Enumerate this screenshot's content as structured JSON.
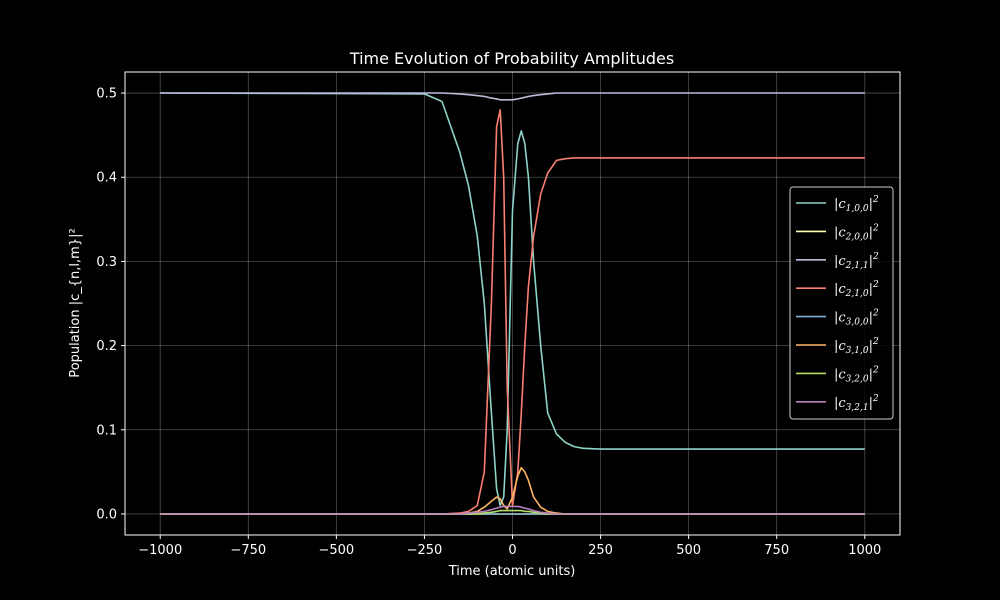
{
  "chart_data": {
    "type": "line",
    "title": "Time Evolution of Probability Amplitudes",
    "xlabel": "Time (atomic units)",
    "ylabel": "Population |c_{n,l,m}|²",
    "xlim": [
      -1100,
      1100
    ],
    "ylim": [
      -0.025,
      0.525
    ],
    "xticks": [
      -1000,
      -750,
      -500,
      -250,
      0,
      250,
      500,
      750,
      1000
    ],
    "xtick_labels": [
      "−1000",
      "−750",
      "−500",
      "−250",
      "0",
      "250",
      "500",
      "750",
      "1000"
    ],
    "yticks": [
      0.0,
      0.1,
      0.2,
      0.3,
      0.4,
      0.5
    ],
    "ytick_labels": [
      "0.0",
      "0.1",
      "0.2",
      "0.3",
      "0.4",
      "0.5"
    ],
    "grid": true,
    "legend_position": "center-right",
    "x": [
      -1000,
      -250,
      -200,
      -150,
      -125,
      -100,
      -80,
      -60,
      -45,
      -35,
      -25,
      -15,
      0,
      15,
      25,
      35,
      45,
      60,
      80,
      100,
      125,
      150,
      175,
      200,
      250,
      1000
    ],
    "series": [
      {
        "name": "|c_{1,0,0}|²",
        "sub": "1,0,0",
        "color": "#8dd3c7",
        "values": [
          0.5,
          0.499,
          0.49,
          0.43,
          0.39,
          0.33,
          0.25,
          0.12,
          0.03,
          0.01,
          0.02,
          0.1,
          0.36,
          0.44,
          0.455,
          0.44,
          0.4,
          0.3,
          0.2,
          0.12,
          0.095,
          0.085,
          0.08,
          0.078,
          0.077,
          0.077
        ]
      },
      {
        "name": "|c_{2,0,0}|²",
        "sub": "2,0,0",
        "color": "#ffffb3",
        "values": [
          0,
          0,
          0,
          0,
          0,
          0,
          0,
          0,
          0,
          0,
          0,
          0,
          0,
          0,
          0,
          0,
          0,
          0,
          0,
          0,
          0,
          0,
          0,
          0,
          0,
          0
        ]
      },
      {
        "name": "|c_{2,1,1}|²",
        "sub": "2,1,1",
        "color": "#bebada",
        "values": [
          0.5,
          0.5,
          0.5,
          0.499,
          0.498,
          0.497,
          0.496,
          0.494,
          0.493,
          0.492,
          0.492,
          0.492,
          0.492,
          0.493,
          0.494,
          0.495,
          0.496,
          0.497,
          0.498,
          0.499,
          0.5,
          0.5,
          0.5,
          0.5,
          0.5,
          0.5
        ]
      },
      {
        "name": "|c_{2,1,0}|²",
        "sub": "2,1,0",
        "color": "#fa8072",
        "values": [
          0,
          0,
          0,
          0.001,
          0.003,
          0.01,
          0.05,
          0.25,
          0.46,
          0.48,
          0.4,
          0.15,
          0.01,
          0.05,
          0.12,
          0.2,
          0.27,
          0.33,
          0.38,
          0.405,
          0.42,
          0.422,
          0.423,
          0.423,
          0.423,
          0.423
        ]
      },
      {
        "name": "|c_{3,0,0}|²",
        "sub": "3,0,0",
        "color": "#80b1d3",
        "values": [
          0,
          0,
          0,
          0,
          0,
          0,
          0,
          0,
          0,
          0,
          0,
          0,
          0,
          0,
          0,
          0,
          0,
          0,
          0,
          0,
          0,
          0,
          0,
          0,
          0,
          0
        ]
      },
      {
        "name": "|c_{3,1,0}|²",
        "sub": "3,1,0",
        "color": "#fdb462",
        "values": [
          0,
          0,
          0,
          0,
          0.001,
          0.003,
          0.008,
          0.015,
          0.02,
          0.018,
          0.01,
          0.006,
          0.02,
          0.045,
          0.055,
          0.05,
          0.04,
          0.02,
          0.008,
          0.003,
          0.001,
          0,
          0,
          0,
          0,
          0
        ]
      },
      {
        "name": "|c_{3,2,0}|²",
        "sub": "3,2,0",
        "color": "#b3de69",
        "values": [
          0,
          0,
          0,
          0,
          0,
          0,
          0.001,
          0.002,
          0.003,
          0.004,
          0.004,
          0.004,
          0.004,
          0.004,
          0.004,
          0.003,
          0.003,
          0.002,
          0.001,
          0,
          0,
          0,
          0,
          0,
          0,
          0
        ]
      },
      {
        "name": "|c_{3,2,1}|²",
        "sub": "3,2,1",
        "color": "#bc80bd",
        "values": [
          0,
          0,
          0,
          0,
          0.001,
          0.002,
          0.003,
          0.005,
          0.007,
          0.008,
          0.009,
          0.009,
          0.009,
          0.009,
          0.008,
          0.007,
          0.006,
          0.004,
          0.002,
          0.001,
          0,
          0,
          0,
          0,
          0,
          0
        ]
      }
    ]
  }
}
